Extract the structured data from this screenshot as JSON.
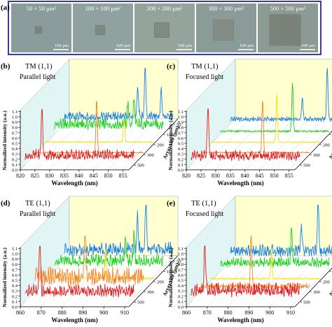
{
  "figure": {
    "panel_a": {
      "letter": "(a)",
      "frame_color": "#3a3aa8",
      "tiles": [
        {
          "label": "50 × 50 µm²",
          "scalebar": "100 µm",
          "bg": "#8a9c9c",
          "square": "#7a857e",
          "square_frac": 0.1
        },
        {
          "label": "100 × 100 µm²",
          "scalebar": "100 µm",
          "bg": "#8fa29f",
          "square": "#7d887f",
          "square_frac": 0.2
        },
        {
          "label": "200 × 200 µm²",
          "scalebar": "100 µm",
          "bg": "#94a39c",
          "square": "#7f8b80",
          "square_frac": 0.4
        },
        {
          "label": "300 × 300 µm²",
          "scalebar": "100 µm",
          "bg": "#8b9b98",
          "square": "#838c85",
          "square_frac": 0.6
        },
        {
          "label": "500 × 500 µm²",
          "scalebar": "100 µm",
          "bg": "#8c9a94",
          "square": "#7a827a",
          "square_frac": 1.0
        }
      ]
    },
    "common": {
      "zlabel": "Normalized intensity (a.u.)",
      "xlabel": "Wavelength (nm)",
      "ylabel": "Array size (µm)",
      "array_ticks": [
        "50",
        "100",
        "200",
        "300",
        "500"
      ],
      "z_ticks": [
        "0.0",
        "0.1",
        "0.2",
        "0.3",
        "0.4",
        "0.5",
        "0.6",
        "0.7",
        "0.8",
        "0.9",
        "1.0",
        "1.1"
      ],
      "series_colors": [
        "#1a7fe6",
        "#19d11b",
        "#f5e000",
        "#f58220",
        "#e01b1b"
      ],
      "back_wall": "#ffffd0",
      "side_wall": "#e0f5f4"
    }
  },
  "chart_data": [
    {
      "type": "line",
      "panel": "(b)",
      "mode": "TM (1,1)",
      "light": "Parallel light",
      "x_ticks": [
        "820",
        "825",
        "830",
        "835",
        "840",
        "845",
        "850",
        "855"
      ],
      "xlim": [
        820,
        857
      ],
      "series": [
        {
          "array": "50",
          "peaks": [
            [
              845.0,
              0.55
            ],
            [
              847.5,
              1.0
            ],
            [
              853.0,
              0.5
            ]
          ],
          "noise": 0.22
        },
        {
          "array": "100",
          "peaks": [
            [
              845.0,
              0.4
            ],
            [
              847.0,
              0.5
            ]
          ],
          "noise": 0.3
        },
        {
          "array": "200",
          "peaks": [
            [
              847.0,
              0.45
            ]
          ],
          "noise": 0.04
        },
        {
          "array": "300",
          "peaks": [
            [
              841.0,
              1.0
            ]
          ],
          "noise": 0.03
        },
        {
          "array": "500",
          "peaks": [
            [
              825.7,
              1.0
            ]
          ],
          "noise": 0.28
        }
      ]
    },
    {
      "type": "line",
      "panel": "(c)",
      "mode": "TM (1,1)",
      "light": "Focused light",
      "x_ticks": [
        "820",
        "825",
        "830",
        "835",
        "840",
        "845",
        "850",
        "855"
      ],
      "xlim": [
        820,
        857
      ],
      "series": [
        {
          "array": "50",
          "peaks": [
            [
              844.5,
              0.4
            ],
            [
              853.0,
              1.0
            ]
          ],
          "noise": 0.12
        },
        {
          "array": "100",
          "peaks": [
            [
              844.5,
              0.9
            ]
          ],
          "noise": 0.06
        },
        {
          "array": "200",
          "peaks": [
            [
              842.5,
              0.9
            ]
          ],
          "noise": 0.03
        },
        {
          "array": "300",
          "peaks": [
            [
              841.0,
              1.0
            ]
          ],
          "noise": 0.03
        },
        {
          "array": "500",
          "peaks": [
            [
              825.7,
              1.0
            ]
          ],
          "noise": 0.26
        }
      ]
    },
    {
      "type": "line",
      "panel": "(d)",
      "mode": "TE (1,1)",
      "light": "Parallel light",
      "x_ticks": [
        "860",
        "870",
        "880",
        "890",
        "900",
        "910"
      ],
      "xlim": [
        860,
        912
      ],
      "series": [
        {
          "array": "50",
          "peaks": [
            [
              895.0,
              0.6
            ],
            [
              899.0,
              1.0
            ]
          ],
          "noise": 0.35
        },
        {
          "array": "100",
          "peaks": [
            [
              894.0,
              0.5
            ],
            [
              898.0,
              0.55
            ]
          ],
          "noise": 0.3
        },
        {
          "array": "200",
          "peaks": [
            [
              889.0,
              0.55
            ]
          ],
          "noise": 0.06
        },
        {
          "array": "300",
          "peaks": [
            [
              884.0,
              1.0
            ]
          ],
          "noise": 0.45
        },
        {
          "array": "500",
          "peaks": [
            [
              867.0,
              1.0
            ]
          ],
          "noise": 0.32
        }
      ]
    },
    {
      "type": "line",
      "panel": "(e)",
      "mode": "TE (1,1)",
      "light": "Focused light",
      "x_ticks": [
        "860",
        "870",
        "880",
        "890",
        "900",
        "910"
      ],
      "xlim": [
        860,
        912
      ],
      "series": [
        {
          "array": "50",
          "peaks": [
            [
              894.0,
              0.5
            ],
            [
              902.0,
              1.0
            ]
          ],
          "noise": 0.3
        },
        {
          "array": "100",
          "peaks": [
            [
              894.0,
              0.7
            ]
          ],
          "noise": 0.25
        },
        {
          "array": "200",
          "peaks": [
            [
              889.0,
              0.55
            ]
          ],
          "noise": 0.05
        },
        {
          "array": "300",
          "peaks": [
            [
              884.0,
              1.0
            ]
          ],
          "noise": 0.15
        },
        {
          "array": "500",
          "peaks": [
            [
              866.5,
              1.0
            ]
          ],
          "noise": 0.35
        }
      ]
    }
  ]
}
